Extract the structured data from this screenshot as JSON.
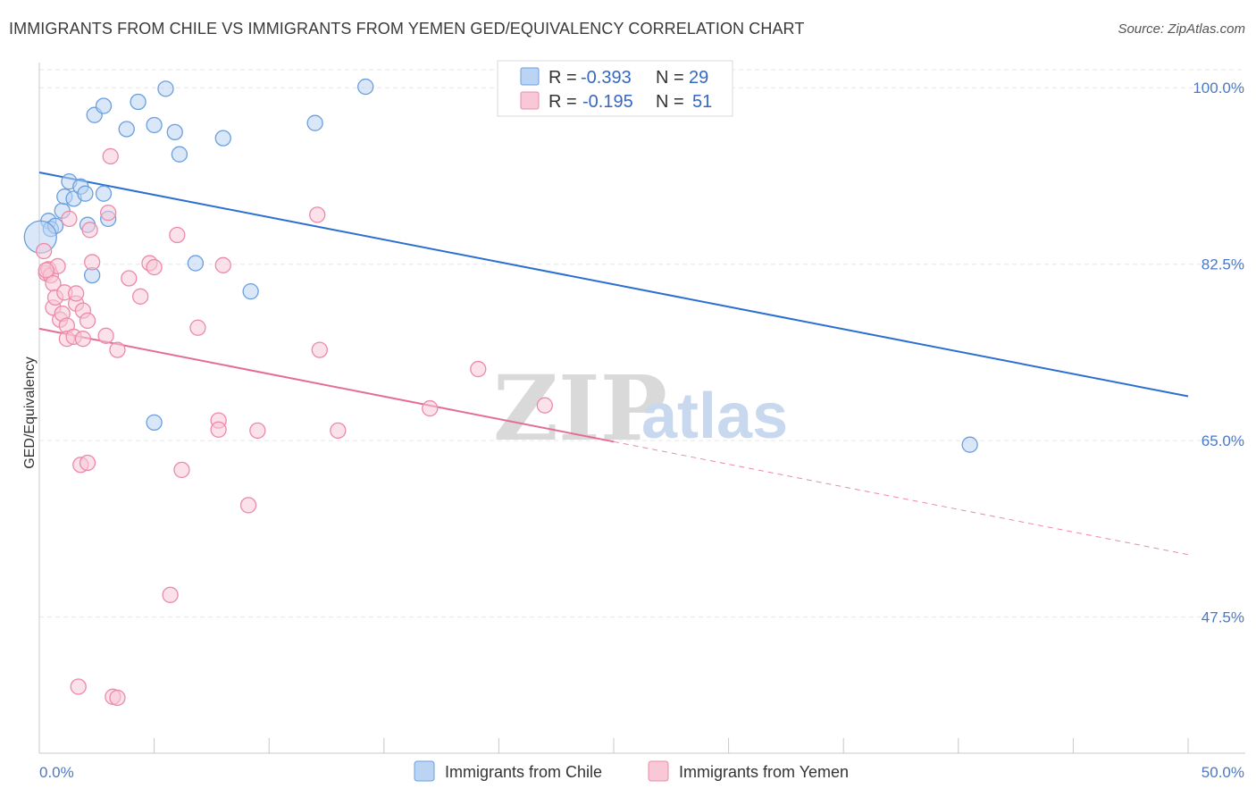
{
  "title": "IMMIGRANTS FROM CHILE VS IMMIGRANTS FROM YEMEN GED/EQUIVALENCY CORRELATION CHART",
  "source": "Source: ZipAtlas.com",
  "watermark": {
    "zip": "ZIP",
    "atlas": "atlas"
  },
  "colors": {
    "chile": "#6a9fde",
    "chile_fill": "#bcd4f3",
    "chile_line": "#2b6fd0",
    "yemen": "#ec8aa8",
    "yemen_fill": "#f8c8d7",
    "yemen_line": "#e56d95"
  },
  "legend": {
    "r_label": "R =",
    "n_label": "N =",
    "chile": {
      "r": "-0.393",
      "n": "29"
    },
    "yemen": {
      "r": "-0.195",
      "n": "51"
    }
  },
  "chart_data": {
    "type": "scatter",
    "title": "IMMIGRANTS FROM CHILE VS IMMIGRANTS FROM YEMEN GED/EQUIVALENCY CORRELATION CHART",
    "xlabel": "",
    "ylabel": "GED/Equivalency",
    "xlim": [
      0,
      50
    ],
    "ylim": [
      34,
      102.5
    ],
    "x_tick_labels": [
      "0.0%",
      "50.0%"
    ],
    "y_ticks": [
      47.5,
      65.0,
      82.5,
      100.0
    ],
    "y_tick_labels": [
      "47.5%",
      "65.0%",
      "82.5%",
      "100.0%"
    ],
    "grid": true,
    "legend_position": "top-center",
    "series": [
      {
        "name": "Immigrants from Chile",
        "points": [
          [
            0.4,
            86.8
          ],
          [
            0.5,
            86.0
          ],
          [
            0.7,
            86.3
          ],
          [
            1.0,
            87.8
          ],
          [
            1.1,
            89.2
          ],
          [
            1.3,
            90.7
          ],
          [
            1.5,
            89.0
          ],
          [
            1.8,
            90.2
          ],
          [
            2.0,
            89.5
          ],
          [
            2.1,
            86.4
          ],
          [
            2.8,
            89.5
          ],
          [
            2.3,
            81.4
          ],
          [
            3.0,
            87.0
          ],
          [
            2.4,
            97.3
          ],
          [
            2.8,
            98.2
          ],
          [
            3.8,
            95.9
          ],
          [
            4.3,
            98.6
          ],
          [
            5.0,
            96.3
          ],
          [
            5.5,
            99.9
          ],
          [
            5.9,
            95.6
          ],
          [
            6.1,
            93.4
          ],
          [
            6.8,
            82.6
          ],
          [
            8.0,
            95.0
          ],
          [
            9.2,
            79.8
          ],
          [
            12.0,
            96.5
          ],
          [
            14.2,
            100.1
          ],
          [
            5.0,
            66.8
          ],
          [
            40.5,
            64.6
          ],
          [
            0.05,
            85.2
          ]
        ],
        "trend": {
          "x": [
            0,
            50
          ],
          "y": [
            91.6,
            69.4
          ]
        }
      },
      {
        "name": "Immigrants from Yemen",
        "points": [
          [
            0.2,
            83.8
          ],
          [
            0.3,
            81.6
          ],
          [
            0.4,
            82.0
          ],
          [
            0.5,
            81.4
          ],
          [
            0.6,
            78.2
          ],
          [
            0.6,
            80.6
          ],
          [
            0.7,
            79.2
          ],
          [
            0.8,
            82.3
          ],
          [
            0.9,
            77.0
          ],
          [
            1.0,
            77.6
          ],
          [
            1.1,
            79.7
          ],
          [
            1.2,
            76.4
          ],
          [
            1.2,
            75.1
          ],
          [
            1.3,
            87.0
          ],
          [
            1.5,
            75.3
          ],
          [
            1.6,
            78.6
          ],
          [
            1.6,
            79.6
          ],
          [
            1.9,
            75.1
          ],
          [
            1.9,
            77.9
          ],
          [
            2.1,
            76.9
          ],
          [
            2.2,
            85.9
          ],
          [
            2.3,
            82.7
          ],
          [
            2.9,
            75.4
          ],
          [
            3.0,
            87.6
          ],
          [
            3.1,
            93.2
          ],
          [
            3.4,
            74.0
          ],
          [
            3.9,
            81.1
          ],
          [
            4.4,
            79.3
          ],
          [
            4.8,
            82.6
          ],
          [
            5.0,
            82.2
          ],
          [
            6.0,
            85.4
          ],
          [
            6.9,
            76.2
          ],
          [
            8.0,
            82.4
          ],
          [
            1.8,
            62.6
          ],
          [
            2.1,
            62.8
          ],
          [
            6.2,
            62.1
          ],
          [
            7.8,
            67.0
          ],
          [
            7.8,
            66.1
          ],
          [
            9.5,
            66.0
          ],
          [
            12.1,
            87.4
          ],
          [
            12.2,
            74.0
          ],
          [
            13.0,
            66.0
          ],
          [
            17.0,
            68.2
          ],
          [
            19.1,
            72.1
          ],
          [
            22.0,
            68.5
          ],
          [
            9.1,
            58.6
          ],
          [
            5.7,
            49.7
          ],
          [
            1.7,
            40.6
          ],
          [
            3.2,
            39.6
          ],
          [
            3.4,
            39.5
          ],
          [
            0.3,
            81.9
          ]
        ],
        "trend": {
          "x": [
            0,
            25
          ],
          "y": [
            76.1,
            64.9
          ],
          "dashed_to": {
            "x": [
              25,
              50
            ],
            "y": [
              64.9,
              53.7
            ]
          }
        }
      }
    ]
  }
}
